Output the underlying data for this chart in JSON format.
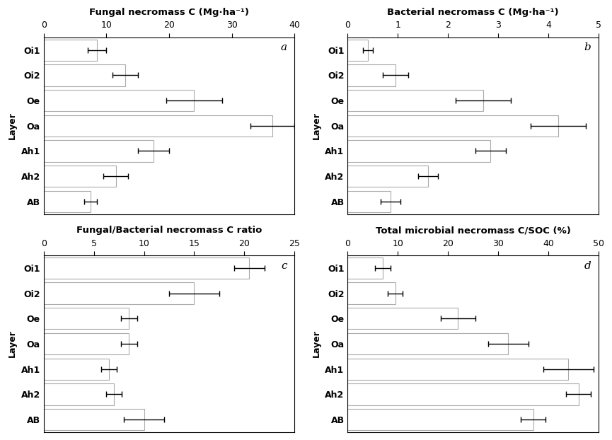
{
  "layers": [
    "Oi1",
    "Oi2",
    "Oe",
    "Oa",
    "Ah1",
    "Ah2",
    "AB"
  ],
  "panel_a": {
    "title": "Fungal necromass C (Mg·ha⁻¹)",
    "label": "a",
    "values": [
      8.5,
      13.0,
      24.0,
      36.5,
      17.5,
      11.5,
      7.5
    ],
    "errors": [
      1.5,
      2.0,
      4.5,
      3.5,
      2.5,
      2.0,
      1.0
    ],
    "xlim": [
      0,
      40
    ],
    "xticks": [
      0,
      10,
      20,
      30,
      40
    ]
  },
  "panel_b": {
    "title": "Bacterial necromass C (Mg·ha⁻¹)",
    "label": "b",
    "values": [
      0.4,
      0.95,
      2.7,
      4.2,
      2.85,
      1.6,
      0.85
    ],
    "errors": [
      0.1,
      0.25,
      0.55,
      0.55,
      0.3,
      0.2,
      0.2
    ],
    "xlim": [
      0,
      5
    ],
    "xticks": [
      0,
      1,
      2,
      3,
      4,
      5
    ]
  },
  "panel_c": {
    "title": "Fungal/Bacterial necromass C ratio",
    "label": "c",
    "values": [
      20.5,
      15.0,
      8.5,
      8.5,
      6.5,
      7.0,
      10.0
    ],
    "errors": [
      1.5,
      2.5,
      0.8,
      0.8,
      0.8,
      0.8,
      2.0
    ],
    "xlim": [
      0,
      25
    ],
    "xticks": [
      0,
      5,
      10,
      15,
      20,
      25
    ]
  },
  "panel_d": {
    "title": "Total microbial necromass C/SOC (%)",
    "label": "d",
    "values": [
      7.0,
      9.5,
      22.0,
      32.0,
      44.0,
      46.0,
      37.0
    ],
    "errors": [
      1.5,
      1.5,
      3.5,
      4.0,
      5.0,
      2.5,
      2.5
    ],
    "xlim": [
      0,
      50
    ],
    "xticks": [
      0,
      10,
      20,
      30,
      40,
      50
    ]
  },
  "ylabel": "Layer",
  "bar_color": "#ffffff",
  "bar_edgecolor": "#aaaaaa",
  "bar_height": 0.85,
  "figsize": [
    8.65,
    6.22
  ],
  "dpi": 100
}
